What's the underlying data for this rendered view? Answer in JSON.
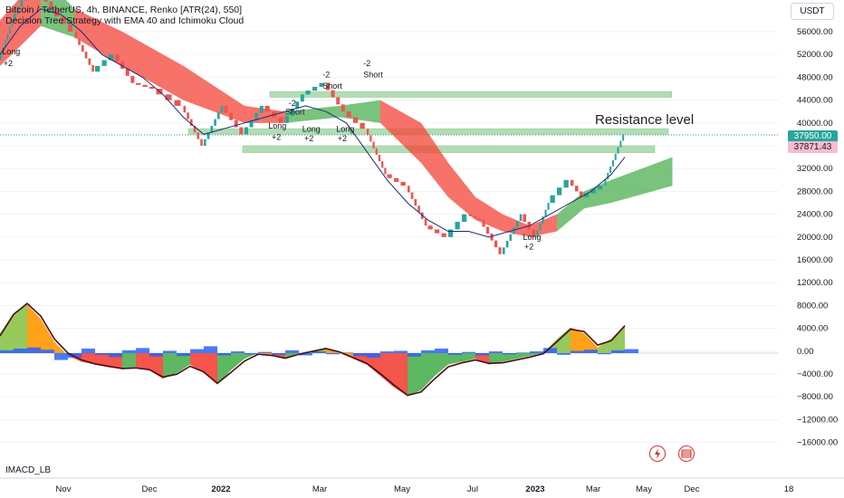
{
  "header": {
    "title": "Bitcoin / TetherUS, 4h, BINANCE, Renko [ATR(24), 550]",
    "subtitle": "Decision Tree Strategy with EMA 40 and Ichimoku Cloud"
  },
  "currency_button": "USDT",
  "price_tags": {
    "current": "37950.00",
    "ema": "37871.43"
  },
  "indicator_label": "IMACD_LB",
  "annotation": "Resistance level",
  "colors": {
    "up": "#26a69a",
    "down": "#ef5350",
    "cloud_bull": "#4caf50",
    "cloud_bear": "#f44336",
    "ema": "#1e2a78",
    "zone": "#a5d6a7"
  },
  "chart_data": [
    {
      "type": "line",
      "title": "Bitcoin / TetherUS, 4h, BINANCE, Renko [ATR(24), 550]",
      "x_ticks": [
        "Nov",
        "Dec",
        "2022",
        "Mar",
        "May",
        "Jul",
        "2023",
        "Mar",
        "May",
        "Dec",
        "18"
      ],
      "y_ticks": [
        56000,
        52000,
        48000,
        44000,
        40000,
        36000,
        32000,
        28000,
        24000,
        20000,
        16000,
        12000,
        8000,
        4000,
        0,
        -4000,
        -8000,
        -12000,
        -16000
      ],
      "y_tick_labels": [
        "56000.00",
        "52000.00",
        "48000.00",
        "44000.00",
        "40000.00",
        "36000.00",
        "32000.00",
        "28000.00",
        "24000.00",
        "20000.00",
        "16000.00",
        "12000.00",
        "8000.00",
        "4000.00",
        "0.00",
        "−4000.00",
        "−8000.00",
        "−12000.00",
        "−16000.00"
      ],
      "ylim": [
        -16000,
        58000
      ],
      "price_path_x": [
        0,
        2,
        5,
        8,
        11,
        14,
        17,
        20,
        23,
        27,
        30,
        33,
        36,
        39,
        42,
        45,
        48,
        51,
        54,
        57,
        60,
        63,
        66,
        69,
        71,
        74
      ],
      "price_path_y": [
        51000,
        58000,
        65000,
        60000,
        56000,
        49000,
        52000,
        47000,
        46000,
        43000,
        36000,
        43000,
        38000,
        43000,
        40000,
        45000,
        47000,
        42000,
        39000,
        31000,
        29000,
        22000,
        20000,
        24000,
        23000,
        17000
      ],
      "series": [
        {
          "name": "Renko",
          "x": [
            0,
            2,
            5,
            8,
            11,
            14,
            17,
            20,
            23,
            27,
            30,
            33,
            36,
            39,
            42,
            45,
            48,
            51,
            54,
            57,
            60,
            63,
            66,
            69,
            71,
            74,
            77,
            79,
            81,
            84,
            86,
            89,
            92
          ],
          "y": [
            51000,
            58000,
            65000,
            60000,
            56000,
            49000,
            52000,
            47000,
            46000,
            43000,
            36000,
            43000,
            38000,
            43000,
            40000,
            45000,
            47000,
            42000,
            39000,
            31000,
            29000,
            22000,
            20000,
            24000,
            23000,
            17000,
            24000,
            20000,
            26000,
            30000,
            27000,
            29000,
            38000
          ]
        },
        {
          "name": "EMA 40",
          "x": [
            0,
            3,
            6,
            9,
            12,
            15,
            18,
            21,
            24,
            27,
            30,
            33,
            36,
            39,
            42,
            45,
            48,
            51,
            54,
            57,
            60,
            63,
            66,
            69,
            72,
            75,
            78,
            81,
            84,
            87,
            90,
            92
          ],
          "y": [
            52000,
            57000,
            60000,
            59000,
            56000,
            52000,
            50000,
            48000,
            45000,
            41000,
            38000,
            39000,
            40000,
            41000,
            42000,
            43000,
            42000,
            40000,
            35000,
            30000,
            26000,
            23000,
            21000,
            21000,
            20000,
            21000,
            22000,
            24000,
            26000,
            28000,
            31000,
            34000
          ]
        }
      ],
      "labels": [
        {
          "text": "Long",
          "x": 0.3,
          "y": 52000
        },
        {
          "text": "+2",
          "x": 0.5,
          "y": 50000
        },
        {
          "text": "Long",
          "x": 39.5,
          "y": 39000
        },
        {
          "text": "+2",
          "x": 40,
          "y": 37000
        },
        {
          "text": "Short",
          "x": 42,
          "y": 41500
        },
        {
          "text": "-2",
          "x": 42.5,
          "y": 43000
        },
        {
          "text": "Long",
          "x": 44.5,
          "y": 38500
        },
        {
          "text": "+2",
          "x": 44.8,
          "y": 36800
        },
        {
          "text": "-2",
          "x": 47.5,
          "y": 48000
        },
        {
          "text": "Short",
          "x": 47.5,
          "y": 46000
        },
        {
          "text": "Long",
          "x": 49.5,
          "y": 38500
        },
        {
          "text": "+2",
          "x": 49.7,
          "y": 36800
        },
        {
          "text": "-2",
          "x": 53.5,
          "y": 50000
        },
        {
          "text": "Short",
          "x": 53.5,
          "y": 48000
        },
        {
          "text": "Long",
          "x": 77,
          "y": 19500
        },
        {
          "text": "+2",
          "x": 77.2,
          "y": 17800
        }
      ],
      "zones": [
        {
          "from_x": 38.5,
          "to_x": 99,
          "y_low": 44500,
          "y_high": 45500
        },
        {
          "from_x": 26.5,
          "to_x": 98.5,
          "y_low": 38000,
          "y_high": 39000
        },
        {
          "from_x": 34.5,
          "to_x": 96.5,
          "y_low": 34800,
          "y_high": 36000
        }
      ]
    },
    {
      "type": "bar",
      "title": "IMACD_LB",
      "ylim": [
        -16000,
        8000
      ],
      "x": [
        0,
        2,
        4,
        6,
        8,
        10,
        12,
        14,
        16,
        18,
        20,
        22,
        24,
        26,
        28,
        30,
        32,
        34,
        36,
        38,
        40,
        42,
        44,
        46,
        48,
        50,
        52,
        54,
        56,
        58,
        60,
        62,
        64,
        66,
        68,
        70,
        72,
        74,
        76,
        78,
        80,
        82,
        84,
        86,
        88,
        90,
        92
      ],
      "values": [
        3500,
        7000,
        8500,
        6000,
        2000,
        -500,
        -1500,
        -2000,
        -2500,
        -2800,
        -2500,
        -3000,
        -4500,
        -3500,
        -2000,
        -3500,
        -5500,
        -3000,
        -1000,
        0,
        -500,
        -1000,
        0,
        500,
        1000,
        0,
        -1000,
        -2000,
        -4000,
        -6000,
        -7500,
        -6500,
        -4000,
        -2000,
        -1500,
        -1000,
        -2000,
        -1500,
        -1000,
        -500,
        0,
        2500,
        4500,
        3500,
        1000,
        2500,
        5000
      ],
      "series": [
        {
          "name": "Signal",
          "x": [
            0,
            2,
            4,
            6,
            8,
            10,
            12,
            14,
            16,
            18,
            20,
            22,
            24,
            26,
            28,
            30,
            32,
            34,
            36,
            38,
            40,
            42,
            44,
            46,
            48,
            50,
            52,
            54,
            56,
            58,
            60,
            62,
            64,
            66,
            68,
            70,
            72,
            74,
            76,
            78,
            80,
            82,
            84,
            86,
            88,
            90,
            92
          ],
          "y": [
            3000,
            6800,
            8700,
            6500,
            2500,
            0,
            -1200,
            -1900,
            -2300,
            -2700,
            -2600,
            -2900,
            -4200,
            -3700,
            -2300,
            -3300,
            -5300,
            -3400,
            -1400,
            -200,
            -400,
            -900,
            -200,
            300,
            800,
            200,
            -800,
            -1800,
            -3600,
            -5600,
            -7400,
            -6800,
            -4500,
            -2400,
            -1700,
            -1200,
            -1800,
            -1700,
            -1200,
            -700,
            -100,
            2000,
            4200,
            3800,
            1400,
            2200,
            4800
          ]
        }
      ],
      "bars_x": [
        0,
        2,
        4,
        6,
        8,
        10,
        12,
        14,
        16,
        18,
        20,
        22,
        24,
        26,
        28,
        30,
        32,
        34,
        36,
        38,
        40,
        42,
        44,
        46,
        48,
        50,
        52,
        54,
        56,
        58,
        60,
        62,
        64,
        66,
        68,
        70,
        72,
        74,
        76,
        78,
        80,
        82,
        84,
        86,
        88,
        90,
        92
      ],
      "blue_hist": [
        500,
        800,
        1000,
        600,
        -1200,
        -800,
        800,
        -300,
        -700,
        500,
        900,
        -600,
        400,
        -500,
        700,
        1200,
        -400,
        300,
        -200,
        200,
        -300,
        500,
        -400,
        300,
        -200,
        100,
        -500,
        -800,
        300,
        400,
        -600,
        500,
        800,
        -300,
        200,
        -400,
        300,
        -200,
        100,
        300,
        900,
        -300,
        400,
        600,
        -200,
        500,
        700
      ]
    }
  ]
}
